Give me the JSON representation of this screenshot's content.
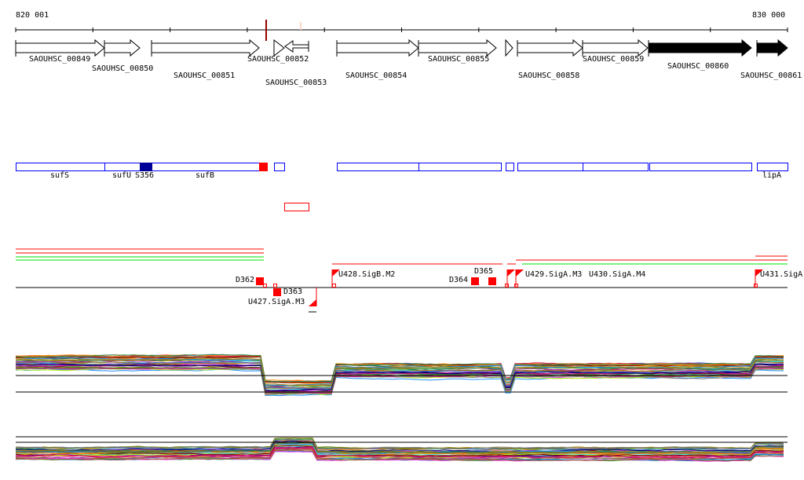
{
  "ruler": {
    "start_label": "820 001",
    "end_label": "830 000",
    "start": 820001,
    "end": 830000,
    "tick_interval": 1000
  },
  "genes": [
    {
      "name": "SAOUHSC_00849",
      "strand": "+",
      "style": "open"
    },
    {
      "name": "SAOUHSC_00850",
      "strand": "+",
      "style": "open"
    },
    {
      "name": "SAOUHSC_00851",
      "strand": "+",
      "style": "open"
    },
    {
      "name": "SAOUHSC_00852",
      "strand": "+",
      "style": "open"
    },
    {
      "name": "SAOUHSC_00853",
      "strand": "-",
      "style": "open"
    },
    {
      "name": "SAOUHSC_00854",
      "strand": "+",
      "style": "open"
    },
    {
      "name": "SAOUHSC_00855",
      "strand": "+",
      "style": "open"
    },
    {
      "name": "SAOUHSC_00858",
      "strand": "+",
      "style": "open"
    },
    {
      "name": "SAOUHSC_00859",
      "strand": "+",
      "style": "open"
    },
    {
      "name": "SAOUHSC_00860",
      "strand": "+",
      "style": "filled"
    },
    {
      "name": "SAOUHSC_00861",
      "strand": "+",
      "style": "filled"
    }
  ],
  "annotations": {
    "labels": [
      "sufS",
      "sufU",
      "S356",
      "sufB",
      "lipA"
    ]
  },
  "regulatory": {
    "labels": [
      "D362",
      "D363",
      "U427.SigA.M3",
      "U428.SigB.M2",
      "D364",
      "D365",
      "U429.SigA.M3",
      "U430.SigA.M4",
      "U431.SigA"
    ]
  },
  "colors": {
    "feature_outline": "#0000ff",
    "feature_dark": "#000099",
    "highlight": "#ff0000",
    "green": "#00e000",
    "marker": "#990000"
  }
}
